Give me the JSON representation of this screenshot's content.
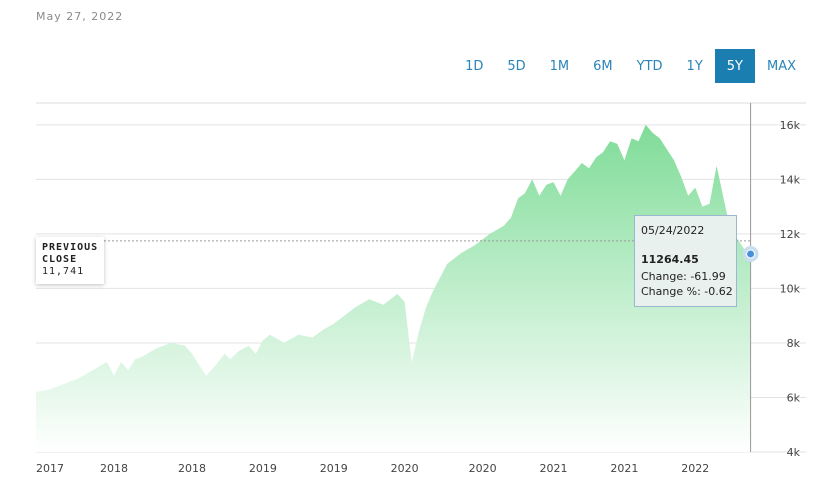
{
  "date_label": "May 27, 2022",
  "range_buttons": [
    "1D",
    "5D",
    "1M",
    "6M",
    "YTD",
    "1Y",
    "5Y",
    "MAX"
  ],
  "active_range": "5Y",
  "previous_close": {
    "label_line1": "PREVIOUS",
    "label_line2": "CLOSE",
    "value": "11,741"
  },
  "tooltip": {
    "date": "05/24/2022",
    "price": "11264.45",
    "change": "Change: -61.99",
    "change_pct": "Change %: -0.62"
  },
  "colors": {
    "accent": "#1a7fb0",
    "area_top": "#7fdc98",
    "area_bottom": "#ffffff"
  },
  "chart_data": {
    "type": "area",
    "title": "",
    "xlabel": "",
    "ylabel": "",
    "ylim": [
      4000,
      16800
    ],
    "y_ticks": [
      4000,
      6000,
      8000,
      10000,
      12000,
      14000,
      16000
    ],
    "y_tick_labels": [
      "4k",
      "6k",
      "8k",
      "10k",
      "12k",
      "14k",
      "16k"
    ],
    "x_tick_labels": [
      "2017",
      "2018",
      "2018",
      "2019",
      "2019",
      "2020",
      "2020",
      "2021",
      "2021",
      "2022"
    ],
    "x_range": [
      2017.35,
      2022.4
    ],
    "x_ticks": [
      2017.35,
      2017.9,
      2018.45,
      2018.95,
      2019.45,
      2019.95,
      2020.5,
      2021.0,
      2021.5,
      2022.0
    ],
    "previous_close": 11741,
    "series": [
      {
        "x": [
          2017.35,
          2017.45,
          2017.55,
          2017.65,
          2017.75,
          2017.85,
          2017.9,
          2017.95,
          2018.0,
          2018.05,
          2018.1,
          2018.2,
          2018.3,
          2018.4,
          2018.45,
          2018.55,
          2018.62,
          2018.68,
          2018.72,
          2018.78,
          2018.85,
          2018.9,
          2018.95,
          2019.0,
          2019.1,
          2019.2,
          2019.3,
          2019.38,
          2019.45,
          2019.5,
          2019.6,
          2019.7,
          2019.8,
          2019.9,
          2019.95,
          2020.0,
          2020.05,
          2020.1,
          2020.15,
          2020.2,
          2020.25,
          2020.35,
          2020.45,
          2020.55,
          2020.65,
          2020.7,
          2020.75,
          2020.8,
          2020.85,
          2020.9,
          2020.95,
          2021.0,
          2021.05,
          2021.1,
          2021.15,
          2021.2,
          2021.25,
          2021.3,
          2021.35,
          2021.4,
          2021.45,
          2021.5,
          2021.55,
          2021.6,
          2021.65,
          2021.7,
          2021.75,
          2021.8,
          2021.85,
          2021.9,
          2021.95,
          2022.0,
          2022.05,
          2022.1,
          2022.15,
          2022.2,
          2022.25,
          2022.3,
          2022.35,
          2022.39
        ],
        "values": [
          6200,
          6300,
          6500,
          6700,
          7000,
          7300,
          6800,
          7300,
          7000,
          7400,
          7500,
          7800,
          8000,
          7900,
          7600,
          6800,
          7200,
          7600,
          7400,
          7700,
          7900,
          7600,
          8100,
          8300,
          8000,
          8300,
          8200,
          8500,
          8700,
          8900,
          9300,
          9600,
          9400,
          9800,
          9500,
          7300,
          8400,
          9300,
          9900,
          10400,
          10900,
          11300,
          11600,
          12000,
          12300,
          12600,
          13300,
          13500,
          14000,
          13400,
          13800,
          13900,
          13400,
          14000,
          14300,
          14600,
          14400,
          14800,
          15000,
          15400,
          15300,
          14700,
          15500,
          15400,
          16000,
          15700,
          15500,
          15100,
          14700,
          14100,
          13400,
          13700,
          13000,
          13100,
          14500,
          13300,
          12100,
          11800,
          11400,
          11264
        ]
      }
    ]
  }
}
